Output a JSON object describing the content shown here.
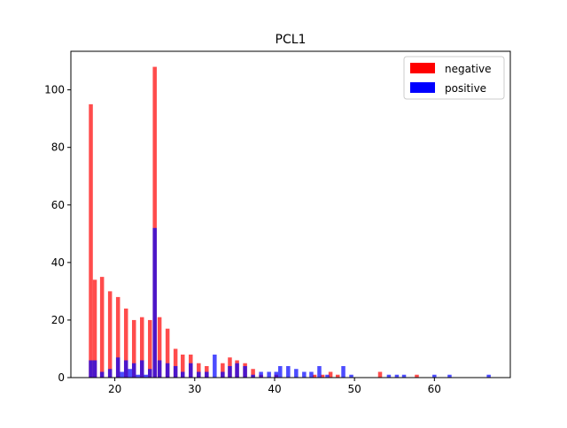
{
  "chart_data": {
    "type": "bar",
    "title": "PCL1",
    "xlabel": "",
    "ylabel": "",
    "xlim": [
      14.5,
      69.5
    ],
    "ylim": [
      0,
      113.4
    ],
    "x_ticks": [
      20,
      30,
      40,
      50,
      60
    ],
    "y_ticks": [
      0,
      20,
      40,
      60,
      80,
      100
    ],
    "legend_position": "top-right",
    "bar_width": 0.5,
    "overlay": true,
    "series": [
      {
        "name": "negative",
        "color": "#ff0000",
        "opacity": 0.7,
        "points": [
          {
            "x": 17.0,
            "y": 95
          },
          {
            "x": 17.5,
            "y": 34
          },
          {
            "x": 18.4,
            "y": 35
          },
          {
            "x": 19.4,
            "y": 30
          },
          {
            "x": 20.4,
            "y": 28
          },
          {
            "x": 21.4,
            "y": 24
          },
          {
            "x": 22.4,
            "y": 20
          },
          {
            "x": 23.4,
            "y": 21
          },
          {
            "x": 24.4,
            "y": 20
          },
          {
            "x": 25.0,
            "y": 108
          },
          {
            "x": 25.6,
            "y": 21
          },
          {
            "x": 26.6,
            "y": 17
          },
          {
            "x": 27.6,
            "y": 10
          },
          {
            "x": 28.5,
            "y": 8
          },
          {
            "x": 29.5,
            "y": 8
          },
          {
            "x": 30.5,
            "y": 5
          },
          {
            "x": 31.5,
            "y": 4
          },
          {
            "x": 33.5,
            "y": 5
          },
          {
            "x": 34.4,
            "y": 7
          },
          {
            "x": 35.3,
            "y": 6
          },
          {
            "x": 36.3,
            "y": 5
          },
          {
            "x": 37.3,
            "y": 3
          },
          {
            "x": 38.3,
            "y": 1
          },
          {
            "x": 40.2,
            "y": 1
          },
          {
            "x": 45.0,
            "y": 1
          },
          {
            "x": 46.0,
            "y": 1
          },
          {
            "x": 47.0,
            "y": 2
          },
          {
            "x": 47.9,
            "y": 1
          },
          {
            "x": 53.2,
            "y": 2
          },
          {
            "x": 57.8,
            "y": 1
          }
        ]
      },
      {
        "name": "positive",
        "color": "#0000ff",
        "opacity": 0.7,
        "points": [
          {
            "x": 17.0,
            "y": 6
          },
          {
            "x": 17.5,
            "y": 6
          },
          {
            "x": 18.4,
            "y": 2
          },
          {
            "x": 19.4,
            "y": 3
          },
          {
            "x": 20.4,
            "y": 7
          },
          {
            "x": 20.9,
            "y": 2
          },
          {
            "x": 21.4,
            "y": 6
          },
          {
            "x": 21.9,
            "y": 3
          },
          {
            "x": 22.4,
            "y": 5
          },
          {
            "x": 22.9,
            "y": 1
          },
          {
            "x": 23.4,
            "y": 6
          },
          {
            "x": 23.9,
            "y": 1
          },
          {
            "x": 24.4,
            "y": 3
          },
          {
            "x": 25.0,
            "y": 52
          },
          {
            "x": 25.6,
            "y": 6
          },
          {
            "x": 26.6,
            "y": 5
          },
          {
            "x": 27.6,
            "y": 4
          },
          {
            "x": 28.5,
            "y": 2
          },
          {
            "x": 29.5,
            "y": 5
          },
          {
            "x": 30.5,
            "y": 2
          },
          {
            "x": 31.5,
            "y": 2
          },
          {
            "x": 32.5,
            "y": 8
          },
          {
            "x": 33.5,
            "y": 2
          },
          {
            "x": 34.4,
            "y": 4
          },
          {
            "x": 35.3,
            "y": 5
          },
          {
            "x": 36.3,
            "y": 4
          },
          {
            "x": 37.3,
            "y": 1
          },
          {
            "x": 38.3,
            "y": 2
          },
          {
            "x": 39.3,
            "y": 2
          },
          {
            "x": 40.2,
            "y": 2
          },
          {
            "x": 40.7,
            "y": 4
          },
          {
            "x": 41.7,
            "y": 4
          },
          {
            "x": 42.7,
            "y": 3
          },
          {
            "x": 43.7,
            "y": 2
          },
          {
            "x": 44.6,
            "y": 2
          },
          {
            "x": 45.6,
            "y": 4
          },
          {
            "x": 46.6,
            "y": 1
          },
          {
            "x": 48.6,
            "y": 4
          },
          {
            "x": 49.6,
            "y": 1
          },
          {
            "x": 54.3,
            "y": 1
          },
          {
            "x": 55.3,
            "y": 1
          },
          {
            "x": 56.2,
            "y": 1
          },
          {
            "x": 60.0,
            "y": 1
          },
          {
            "x": 61.9,
            "y": 1
          },
          {
            "x": 66.8,
            "y": 1
          }
        ]
      }
    ]
  }
}
